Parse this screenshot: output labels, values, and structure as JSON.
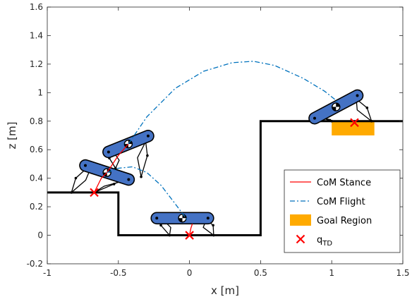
{
  "chart_data": {
    "type": "line",
    "xlabel": "x [m]",
    "ylabel": "z [m]",
    "xlim": [
      -1,
      1.5
    ],
    "ylim": [
      -0.2,
      1.6
    ],
    "xticks": [
      -1,
      -0.5,
      0,
      0.5,
      1,
      1.5
    ],
    "yticks": [
      -0.2,
      0,
      0.2,
      0.4,
      0.6,
      0.8,
      1,
      1.2,
      1.4,
      1.6
    ],
    "xtick_labels": [
      "-1",
      "-0.5",
      "0",
      "0.5",
      "1",
      "1.5"
    ],
    "ytick_labels": [
      "-0.2",
      "0",
      "0.2",
      "0.4",
      "0.6",
      "0.8",
      "1",
      "1.2",
      "1.4",
      "1.6"
    ],
    "grid": false,
    "legend_position": "bottom-right",
    "legend": [
      {
        "label": "CoM Stance",
        "style": "line",
        "color": "#ff0000"
      },
      {
        "label": "CoM Flight",
        "style": "dash-dot",
        "color": "#0072bd"
      },
      {
        "label": "Goal Region",
        "style": "patch",
        "color": "#ffaa00"
      },
      {
        "label": "q",
        "sub": "TD",
        "style": "marker-x",
        "color": "#ff0000"
      }
    ],
    "terrain": {
      "x": [
        -1,
        -0.5,
        -0.5,
        0.5,
        0.5,
        1.5
      ],
      "z": [
        0.3,
        0.3,
        0.0,
        0.0,
        0.8,
        0.8
      ]
    },
    "goal_region": {
      "x": [
        1.0,
        1.3
      ],
      "z": [
        0.7,
        0.8
      ]
    },
    "series": [
      {
        "name": "CoM Stance",
        "style": "solid",
        "color": "#ff0000",
        "segments": [
          {
            "x": [
              -0.67,
              -0.62,
              -0.58
            ],
            "z": [
              0.3,
              0.4,
              0.44
            ]
          },
          {
            "x": [
              -0.58,
              -0.5,
              -0.43
            ],
            "z": [
              0.44,
              0.56,
              0.64
            ]
          },
          {
            "x": [
              0.0,
              0.01,
              0.02
            ],
            "z": [
              0.0,
              0.05,
              0.08
            ]
          }
        ]
      },
      {
        "name": "CoM Flight",
        "style": "dash-dot",
        "color": "#0072bd",
        "segments": [
          {
            "x": [
              -0.58,
              -0.5,
              -0.4,
              -0.3,
              -0.2,
              -0.1,
              -0.01
            ],
            "z": [
              0.44,
              0.47,
              0.48,
              0.44,
              0.35,
              0.22,
              0.1
            ]
          },
          {
            "x": [
              -0.43,
              -0.3,
              -0.1,
              0.1,
              0.3,
              0.45,
              0.6,
              0.8,
              0.95,
              1.05
            ],
            "z": [
              0.64,
              0.83,
              1.03,
              1.15,
              1.21,
              1.22,
              1.19,
              1.1,
              1.01,
              0.93
            ]
          }
        ]
      }
    ],
    "touchdown_points": {
      "x": [
        -0.67,
        0.0,
        1.16
      ],
      "z": [
        0.3,
        0.0,
        0.79
      ]
    },
    "robots": [
      {
        "cx": -0.43,
        "cz": 0.64,
        "angle": 22,
        "half_len": 0.15,
        "feet": [
          [
            -0.52,
            0.47
          ],
          [
            -0.34,
            0.41
          ]
        ]
      },
      {
        "cx": -0.58,
        "cz": 0.44,
        "angle": -18,
        "half_len": 0.16,
        "feet": [
          [
            -0.83,
            0.3
          ],
          [
            -0.67,
            0.3
          ]
        ]
      },
      {
        "cx": -0.05,
        "cz": 0.12,
        "angle": 0,
        "half_len": 0.18,
        "feet": [
          [
            -0.14,
            0.0
          ],
          [
            0.17,
            0.0
          ]
        ]
      },
      {
        "cx": 1.03,
        "cz": 0.9,
        "angle": 28,
        "half_len": 0.17,
        "feet": [
          [
            1.0,
            0.8
          ],
          [
            1.28,
            0.8
          ]
        ]
      }
    ]
  }
}
